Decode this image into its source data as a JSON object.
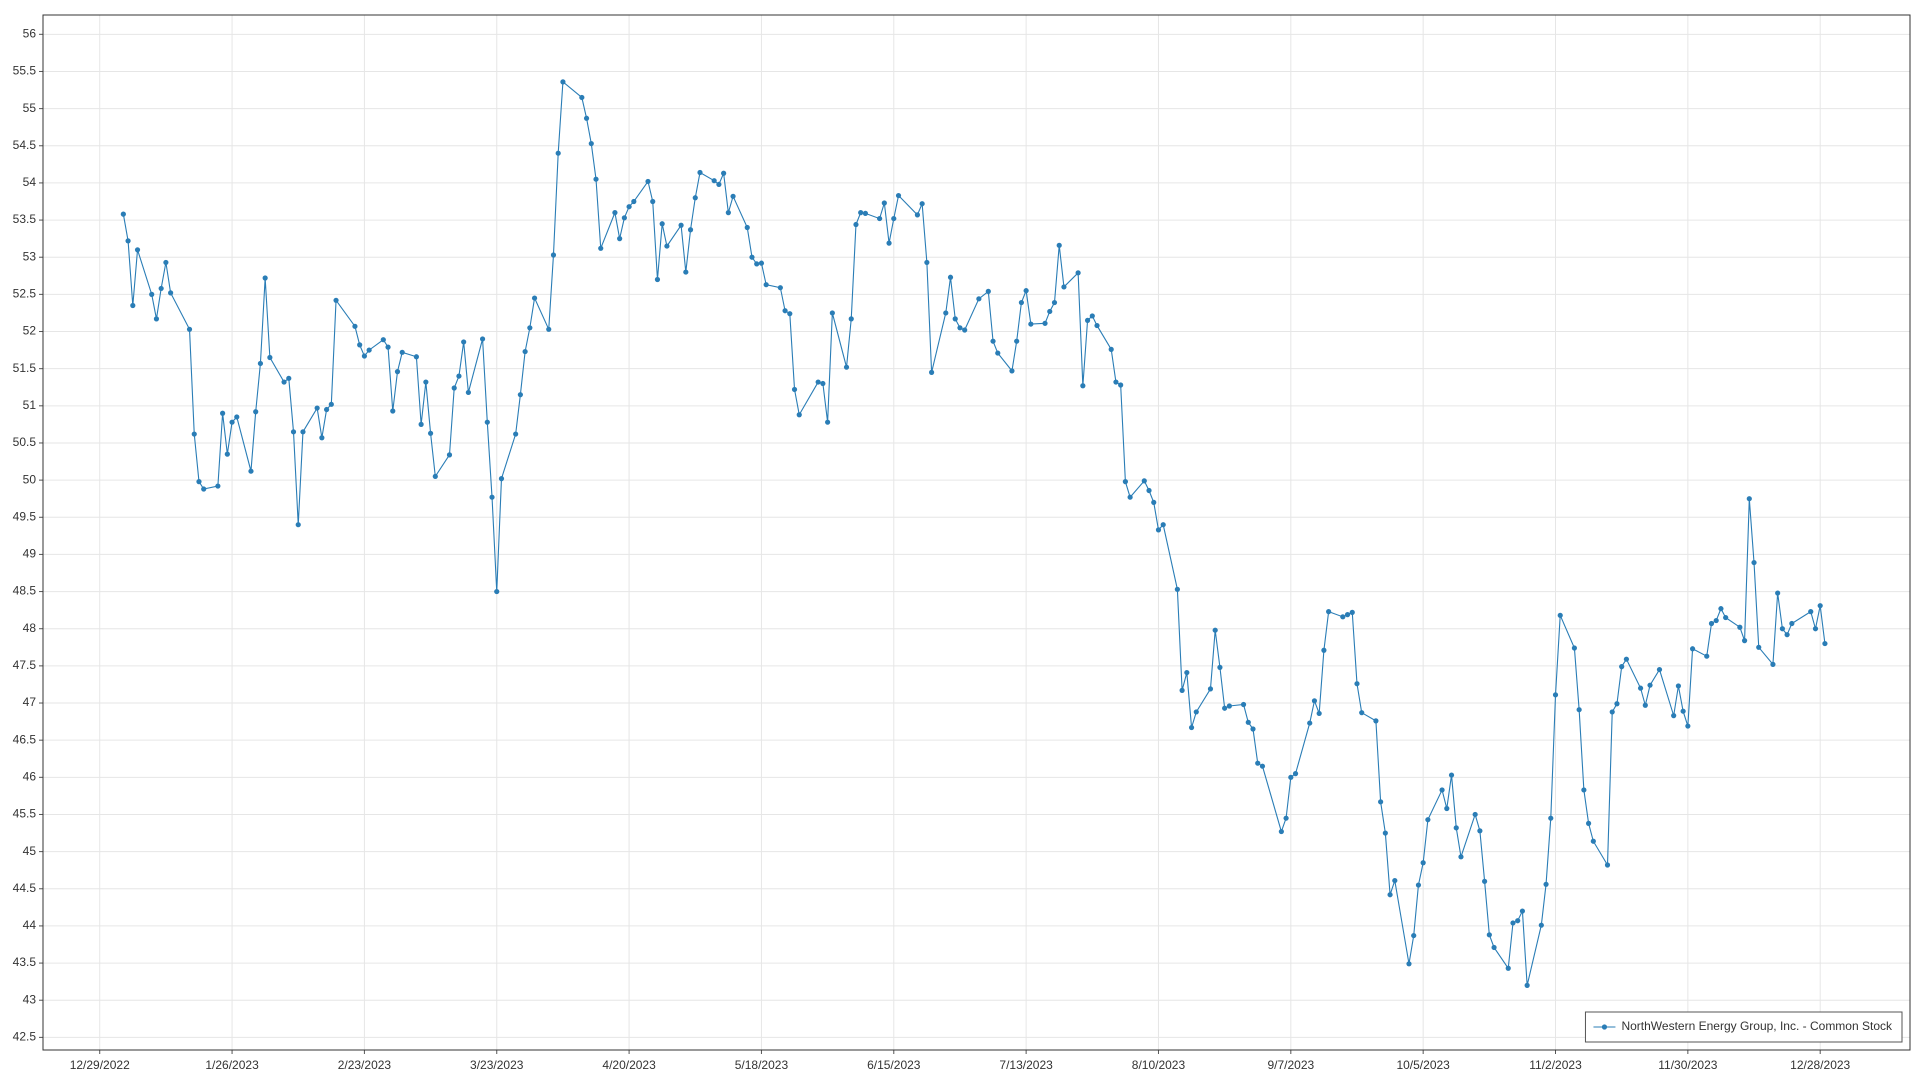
{
  "chart_data": {
    "type": "line",
    "grid": true,
    "legend": "lower right",
    "xlim": [
      "12/17/2022",
      "1/16/2024"
    ],
    "ylim": [
      42.33,
      56.26
    ],
    "yticks": [
      42.5,
      43,
      43.5,
      44,
      44.5,
      45,
      45.5,
      46,
      46.5,
      47,
      47.5,
      48,
      48.5,
      49,
      49.5,
      50,
      50.5,
      51,
      51.5,
      52,
      52.5,
      53,
      53.5,
      54,
      54.5,
      55,
      55.5,
      56
    ],
    "xticks": [
      "12/29/2022",
      "1/26/2023",
      "2/23/2023",
      "3/23/2023",
      "4/20/2023",
      "5/18/2023",
      "6/15/2023",
      "7/13/2023",
      "8/10/2023",
      "9/7/2023",
      "10/5/2023",
      "11/2/2023",
      "11/30/2023",
      "12/28/2023"
    ],
    "x": [
      "1/3/2023",
      "1/4/2023",
      "1/5/2023",
      "1/6/2023",
      "1/9/2023",
      "1/10/2023",
      "1/11/2023",
      "1/12/2023",
      "1/13/2023",
      "1/17/2023",
      "1/18/2023",
      "1/19/2023",
      "1/20/2023",
      "1/23/2023",
      "1/24/2023",
      "1/25/2023",
      "1/26/2023",
      "1/27/2023",
      "1/30/2023",
      "1/31/2023",
      "2/1/2023",
      "2/2/2023",
      "2/3/2023",
      "2/6/2023",
      "2/7/2023",
      "2/8/2023",
      "2/9/2023",
      "2/10/2023",
      "2/13/2023",
      "2/14/2023",
      "2/15/2023",
      "2/16/2023",
      "2/17/2023",
      "2/21/2023",
      "2/22/2023",
      "2/23/2023",
      "2/24/2023",
      "2/27/2023",
      "2/28/2023",
      "3/1/2023",
      "3/2/2023",
      "3/3/2023",
      "3/6/2023",
      "3/7/2023",
      "3/8/2023",
      "3/9/2023",
      "3/10/2023",
      "3/13/2023",
      "3/14/2023",
      "3/15/2023",
      "3/16/2023",
      "3/17/2023",
      "3/20/2023",
      "3/21/2023",
      "3/22/2023",
      "3/23/2023",
      "3/24/2023",
      "3/27/2023",
      "3/28/2023",
      "3/29/2023",
      "3/30/2023",
      "3/31/2023",
      "4/3/2023",
      "4/4/2023",
      "4/5/2023",
      "4/6/2023",
      "4/10/2023",
      "4/11/2023",
      "4/12/2023",
      "4/13/2023",
      "4/14/2023",
      "4/17/2023",
      "4/18/2023",
      "4/19/2023",
      "4/20/2023",
      "4/21/2023",
      "4/24/2023",
      "4/25/2023",
      "4/26/2023",
      "4/27/2023",
      "4/28/2023",
      "5/1/2023",
      "5/2/2023",
      "5/3/2023",
      "5/4/2023",
      "5/5/2023",
      "5/8/2023",
      "5/9/2023",
      "5/10/2023",
      "5/11/2023",
      "5/12/2023",
      "5/15/2023",
      "5/16/2023",
      "5/17/2023",
      "5/18/2023",
      "5/19/2023",
      "5/22/2023",
      "5/23/2023",
      "5/24/2023",
      "5/25/2023",
      "5/26/2023",
      "5/30/2023",
      "5/31/2023",
      "6/1/2023",
      "6/2/2023",
      "6/5/2023",
      "6/6/2023",
      "6/7/2023",
      "6/8/2023",
      "6/9/2023",
      "6/12/2023",
      "6/13/2023",
      "6/14/2023",
      "6/15/2023",
      "6/16/2023",
      "6/20/2023",
      "6/21/2023",
      "6/22/2023",
      "6/23/2023",
      "6/26/2023",
      "6/27/2023",
      "6/28/2023",
      "6/29/2023",
      "6/30/2023",
      "7/3/2023",
      "7/5/2023",
      "7/6/2023",
      "7/7/2023",
      "7/10/2023",
      "7/11/2023",
      "7/12/2023",
      "7/13/2023",
      "7/14/2023",
      "7/17/2023",
      "7/18/2023",
      "7/19/2023",
      "7/20/2023",
      "7/21/2023",
      "7/24/2023",
      "7/25/2023",
      "7/26/2023",
      "7/27/2023",
      "7/28/2023",
      "7/31/2023",
      "8/1/2023",
      "8/2/2023",
      "8/3/2023",
      "8/4/2023",
      "8/7/2023",
      "8/8/2023",
      "8/9/2023",
      "8/10/2023",
      "8/11/2023",
      "8/14/2023",
      "8/15/2023",
      "8/16/2023",
      "8/17/2023",
      "8/18/2023",
      "8/21/2023",
      "8/22/2023",
      "8/23/2023",
      "8/24/2023",
      "8/25/2023",
      "8/28/2023",
      "8/29/2023",
      "8/30/2023",
      "8/31/2023",
      "9/1/2023",
      "9/5/2023",
      "9/6/2023",
      "9/7/2023",
      "9/8/2023",
      "9/11/2023",
      "9/12/2023",
      "9/13/2023",
      "9/14/2023",
      "9/15/2023",
      "9/18/2023",
      "9/19/2023",
      "9/20/2023",
      "9/21/2023",
      "9/22/2023",
      "9/25/2023",
      "9/26/2023",
      "9/27/2023",
      "9/28/2023",
      "9/29/2023",
      "10/2/2023",
      "10/3/2023",
      "10/4/2023",
      "10/5/2023",
      "10/6/2023",
      "10/9/2023",
      "10/10/2023",
      "10/11/2023",
      "10/12/2023",
      "10/13/2023",
      "10/16/2023",
      "10/17/2023",
      "10/18/2023",
      "10/19/2023",
      "10/20/2023",
      "10/23/2023",
      "10/24/2023",
      "10/25/2023",
      "10/26/2023",
      "10/27/2023",
      "10/30/2023",
      "10/31/2023",
      "11/1/2023",
      "11/2/2023",
      "11/3/2023",
      "11/6/2023",
      "11/7/2023",
      "11/8/2023",
      "11/9/2023",
      "11/10/2023",
      "11/13/2023",
      "11/14/2023",
      "11/15/2023",
      "11/16/2023",
      "11/17/2023",
      "11/20/2023",
      "11/21/2023",
      "11/22/2023",
      "11/24/2023",
      "11/27/2023",
      "11/28/2023",
      "11/29/2023",
      "11/30/2023",
      "12/1/2023",
      "12/4/2023",
      "12/5/2023",
      "12/6/2023",
      "12/7/2023",
      "12/8/2023",
      "12/11/2023",
      "12/12/2023",
      "12/13/2023",
      "12/14/2023",
      "12/15/2023",
      "12/18/2023",
      "12/19/2023",
      "12/20/2023",
      "12/21/2023",
      "12/22/2023",
      "12/26/2023",
      "12/27/2023",
      "12/28/2023",
      "12/29/2023"
    ],
    "series": [
      {
        "name": "NorthWestern Energy Group, Inc.  - Common Stock",
        "color": "#2a7db6",
        "values": [
          53.58,
          53.22,
          52.35,
          53.1,
          52.5,
          52.17,
          52.58,
          52.93,
          52.52,
          52.03,
          50.62,
          49.98,
          49.88,
          49.92,
          50.9,
          50.35,
          50.78,
          50.85,
          50.12,
          50.92,
          51.57,
          52.72,
          51.65,
          51.32,
          51.37,
          50.65,
          49.4,
          50.65,
          50.97,
          50.57,
          50.95,
          51.02,
          52.42,
          52.07,
          51.82,
          51.67,
          51.75,
          51.89,
          51.79,
          50.93,
          51.46,
          51.72,
          51.66,
          50.75,
          51.32,
          50.63,
          50.05,
          50.34,
          51.24,
          51.4,
          51.86,
          51.18,
          51.9,
          50.78,
          49.77,
          48.5,
          50.02,
          50.62,
          51.15,
          51.73,
          52.05,
          52.45,
          52.03,
          53.03,
          54.4,
          55.36,
          55.15,
          54.87,
          54.53,
          54.05,
          53.12,
          53.6,
          53.25,
          53.53,
          53.68,
          53.75,
          54.02,
          53.75,
          52.7,
          53.45,
          53.15,
          53.43,
          52.8,
          53.37,
          53.8,
          54.14,
          54.03,
          53.98,
          54.13,
          53.6,
          53.82,
          53.4,
          53.0,
          52.91,
          52.92,
          52.63,
          52.59,
          52.28,
          52.24,
          51.22,
          50.88,
          51.32,
          51.3,
          50.78,
          52.25,
          51.52,
          52.17,
          53.44,
          53.6,
          53.59,
          53.52,
          53.73,
          53.19,
          53.52,
          53.83,
          53.57,
          53.72,
          52.93,
          51.45,
          52.25,
          52.73,
          52.17,
          52.05,
          52.02,
          52.44,
          52.54,
          51.87,
          51.71,
          51.47,
          51.87,
          52.39,
          52.55,
          52.1,
          52.11,
          52.27,
          52.39,
          53.16,
          52.6,
          52.79,
          51.27,
          52.15,
          52.21,
          52.08,
          51.76,
          51.32,
          51.28,
          49.98,
          49.77,
          49.99,
          49.86,
          49.7,
          49.33,
          49.4,
          48.53,
          47.17,
          47.41,
          46.67,
          46.88,
          47.19,
          47.98,
          47.48,
          46.93,
          46.96,
          46.98,
          46.74,
          46.65,
          46.19,
          46.15,
          45.27,
          45.45,
          46.0,
          46.05,
          46.73,
          47.03,
          46.86,
          47.71,
          48.23,
          48.16,
          48.19,
          48.22,
          47.26,
          46.87,
          46.76,
          45.67,
          45.25,
          44.42,
          44.61,
          43.49,
          43.87,
          44.55,
          44.85,
          45.43,
          45.83,
          45.58,
          46.03,
          45.32,
          44.93,
          45.5,
          45.28,
          44.6,
          43.88,
          43.71,
          43.43,
          44.04,
          44.07,
          44.2,
          43.2,
          44.01,
          44.56,
          45.45,
          47.11,
          48.18,
          47.74,
          46.91,
          45.83,
          45.38,
          45.14,
          44.82,
          46.88,
          46.99,
          47.49,
          47.59,
          47.2,
          46.97,
          47.24,
          47.45,
          46.83,
          47.23,
          46.89,
          46.69,
          47.73,
          47.63,
          48.07,
          48.11,
          48.27,
          48.15,
          48.02,
          47.84,
          49.75,
          48.89,
          47.75,
          47.52,
          48.48,
          48.0,
          47.92,
          48.07,
          48.23,
          48.0,
          48.31,
          47.8
        ]
      }
    ]
  }
}
